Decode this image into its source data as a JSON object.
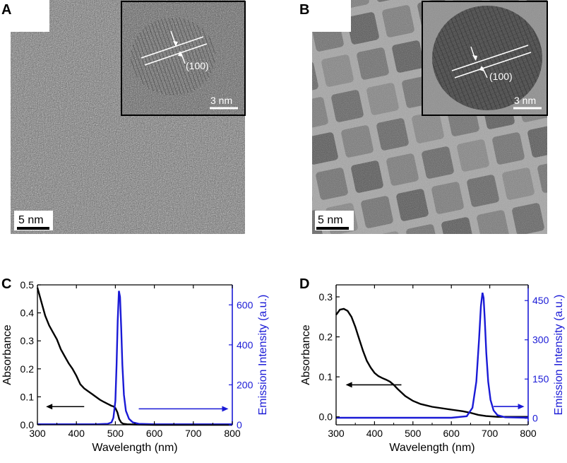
{
  "panels": {
    "A": {
      "label": "A",
      "scale_bar": "5 nm",
      "inset_scale_bar": "3 nm",
      "lattice_plane": "(100)"
    },
    "B": {
      "label": "B",
      "scale_bar": "5 nm",
      "inset_scale_bar": "3 nm",
      "lattice_plane": "(100)"
    },
    "C": {
      "label": "C"
    },
    "D": {
      "label": "D"
    }
  },
  "colors": {
    "absorbance": "#000000",
    "emission": "#1a1ad6",
    "tem_dark": "#3a3a3a",
    "tem_light": "#8a8a8a"
  },
  "chart_data": [
    {
      "panel": "C",
      "type": "line",
      "xlabel": "Wavelength (nm)",
      "ylabel": "Absorbance",
      "y2label": "Emission Intensity (a.u.)",
      "xlim": [
        300,
        800
      ],
      "ylim": [
        0,
        0.5
      ],
      "y2lim": [
        0,
        700
      ],
      "xticks": [
        300,
        400,
        500,
        600,
        700,
        800
      ],
      "yticks": [
        0.0,
        0.1,
        0.2,
        0.3,
        0.4,
        0.5
      ],
      "yticklabels": [
        "0.0",
        "0.1",
        "0.2",
        "0.3",
        "0.4",
        "0.5"
      ],
      "y2ticks": [
        0,
        200,
        400,
        600
      ],
      "series": [
        {
          "axis": "left",
          "color": "#000000",
          "x": [
            300,
            310,
            320,
            330,
            340,
            350,
            360,
            370,
            380,
            390,
            400,
            410,
            420,
            430,
            440,
            450,
            460,
            470,
            480,
            490,
            495,
            500,
            505,
            510,
            515,
            520,
            530,
            550,
            600,
            700,
            800
          ],
          "y": [
            0.49,
            0.44,
            0.39,
            0.355,
            0.33,
            0.305,
            0.27,
            0.245,
            0.22,
            0.2,
            0.175,
            0.145,
            0.13,
            0.12,
            0.11,
            0.1,
            0.09,
            0.082,
            0.075,
            0.068,
            0.066,
            0.06,
            0.045,
            0.02,
            0.008,
            0.004,
            0.002,
            0.001,
            0.0,
            0.0,
            0.0
          ]
        },
        {
          "axis": "right",
          "color": "#1a1ad6",
          "x": [
            300,
            450,
            480,
            490,
            495,
            500,
            503,
            506,
            509,
            512,
            515,
            518,
            522,
            527,
            535,
            545,
            560,
            600,
            700,
            800
          ],
          "y": [
            3,
            3,
            5,
            12,
            35,
            120,
            300,
            520,
            670,
            640,
            480,
            300,
            150,
            70,
            30,
            12,
            5,
            3,
            3,
            3
          ]
        }
      ]
    },
    {
      "panel": "D",
      "type": "line",
      "xlabel": "Wavelength (nm)",
      "ylabel": "Absorbance",
      "y2label": "Emission Intensity (a.u.)",
      "xlim": [
        300,
        800
      ],
      "ylim": [
        -0.02,
        0.33
      ],
      "y2lim": [
        -25,
        510
      ],
      "xticks": [
        300,
        400,
        500,
        600,
        700,
        800
      ],
      "yticks": [
        0.0,
        0.1,
        0.2,
        0.3
      ],
      "yticklabels": [
        "0.0",
        "0.1",
        "0.2",
        "0.3"
      ],
      "y2ticks": [
        0,
        150,
        300,
        450
      ],
      "series": [
        {
          "axis": "left",
          "color": "#000000",
          "x": [
            300,
            310,
            320,
            330,
            340,
            350,
            360,
            370,
            380,
            390,
            400,
            410,
            420,
            430,
            440,
            450,
            460,
            480,
            500,
            520,
            550,
            600,
            630,
            650,
            670,
            690,
            720,
            800
          ],
          "y": [
            0.255,
            0.268,
            0.27,
            0.265,
            0.25,
            0.225,
            0.195,
            0.165,
            0.14,
            0.123,
            0.11,
            0.102,
            0.097,
            0.093,
            0.088,
            0.08,
            0.07,
            0.052,
            0.04,
            0.032,
            0.025,
            0.018,
            0.014,
            0.01,
            0.005,
            0.002,
            0.0,
            0.0
          ]
        },
        {
          "axis": "right",
          "color": "#1a1ad6",
          "x": [
            300,
            600,
            640,
            655,
            665,
            672,
            677,
            681,
            684,
            687,
            691,
            696,
            702,
            710,
            720,
            740,
            800
          ],
          "y": [
            2,
            2,
            8,
            40,
            140,
            300,
            430,
            480,
            460,
            380,
            250,
            140,
            70,
            30,
            12,
            4,
            2
          ]
        }
      ]
    }
  ]
}
